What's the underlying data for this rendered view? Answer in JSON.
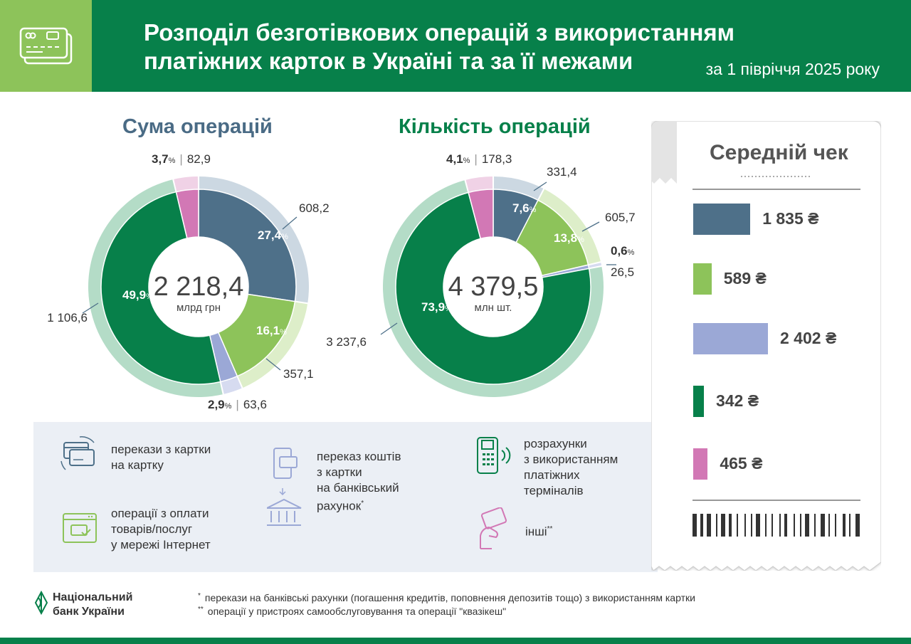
{
  "header": {
    "title_line1": "Розподіл безготівкових операцій з використанням",
    "title_line2": "платіжних карток в Україні та за її межами",
    "period": "за 1 півріччя 2025 року",
    "icon": "cards-icon"
  },
  "colors": {
    "card_to_card": "#4e7089",
    "card_to_card_outer": "#ccd8e2",
    "internet": "#8dc35a",
    "internet_outer": "#ddeec9",
    "bank_account": "#9ba8d6",
    "bank_account_outer": "#d6dbf0",
    "terminals": "#07804a",
    "terminals_outer": "#b4dcc7",
    "other": "#d278b5",
    "other_outer": "#f0d2e6"
  },
  "chart_data": [
    {
      "type": "pie",
      "title": "Сума операцій",
      "center_value": "2 218,4",
      "center_unit": "млрд грн",
      "series": [
        {
          "name": "перекази з картки на картку",
          "percent": 27.4,
          "value": 608.2,
          "percent_label": "27,4",
          "value_label": "608,2"
        },
        {
          "name": "операції з оплати товарів/послуг у мережі Інтернет",
          "percent": 16.1,
          "value": 357.1,
          "percent_label": "16,1",
          "value_label": "357,1"
        },
        {
          "name": "переказ коштів з картки на банківський рахунок",
          "percent": 2.9,
          "value": 63.6,
          "percent_label": "2,9",
          "value_label": "63,6"
        },
        {
          "name": "розрахунки з використанням платіжних терміналів",
          "percent": 49.9,
          "value": 1106.6,
          "percent_label": "49,9",
          "value_label": "1 106,6"
        },
        {
          "name": "інші",
          "percent": 3.7,
          "value": 82.9,
          "percent_label": "3,7",
          "value_label": "82,9"
        }
      ]
    },
    {
      "type": "pie",
      "title": "Кількість операцій",
      "center_value": "4 379,5",
      "center_unit": "млн шт.",
      "series": [
        {
          "name": "перекази з картки на картку",
          "percent": 7.6,
          "value": 331.4,
          "percent_label": "7,6",
          "value_label": "331,4"
        },
        {
          "name": "операції з оплати товарів/послуг у мережі Інтернет",
          "percent": 13.8,
          "value": 605.7,
          "percent_label": "13,8",
          "value_label": "605,7"
        },
        {
          "name": "переказ коштів з картки на банківський рахунок",
          "percent": 0.6,
          "value": 26.5,
          "percent_label": "0,6",
          "value_label": "26,5"
        },
        {
          "name": "розрахунки з використанням платіжних терміналів",
          "percent": 73.9,
          "value": 3237.6,
          "percent_label": "73,9",
          "value_label": "3 237,6"
        },
        {
          "name": "інші",
          "percent": 4.1,
          "value": 178.3,
          "percent_label": "4,1",
          "value_label": "178,3"
        }
      ]
    },
    {
      "type": "bar",
      "title": "Середній чек",
      "categories": [
        "перекази з картки на картку",
        "операції з оплати товарів/послуг у мережі Інтернет",
        "переказ коштів з картки на банківський рахунок",
        "розрахунки з використанням платіжних терміналів",
        "інші"
      ],
      "values": [
        1835,
        589,
        2402,
        342,
        465
      ],
      "value_labels": [
        "1 835 ₴",
        "589 ₴",
        "2 402 ₴",
        "342 ₴",
        "465 ₴"
      ]
    }
  ],
  "legend": {
    "card_to_card": "перекази з картки\nна картку",
    "internet": "операції з оплати\nтоварів/послуг\nу мережі Інтернет",
    "bank_account": "переказ коштів\nз картки\nна банківський\nрахунок",
    "bank_account_star": "*",
    "terminals": "розрахунки\nз використанням\nплатіжних\nтерміналів",
    "other": "інші",
    "other_star": "**"
  },
  "footer": {
    "bank_line1": "Національний",
    "bank_line2": "банк України",
    "fn1_mark": "*",
    "fn1": "перекази на банківські рахунки (погашення кредитів, поповнення депозитів тощо) з використанням картки",
    "fn2_mark": "**",
    "fn2": "операції у пристроях самообслуговування та операції \"квазікеш\""
  },
  "percent_sign": "%"
}
